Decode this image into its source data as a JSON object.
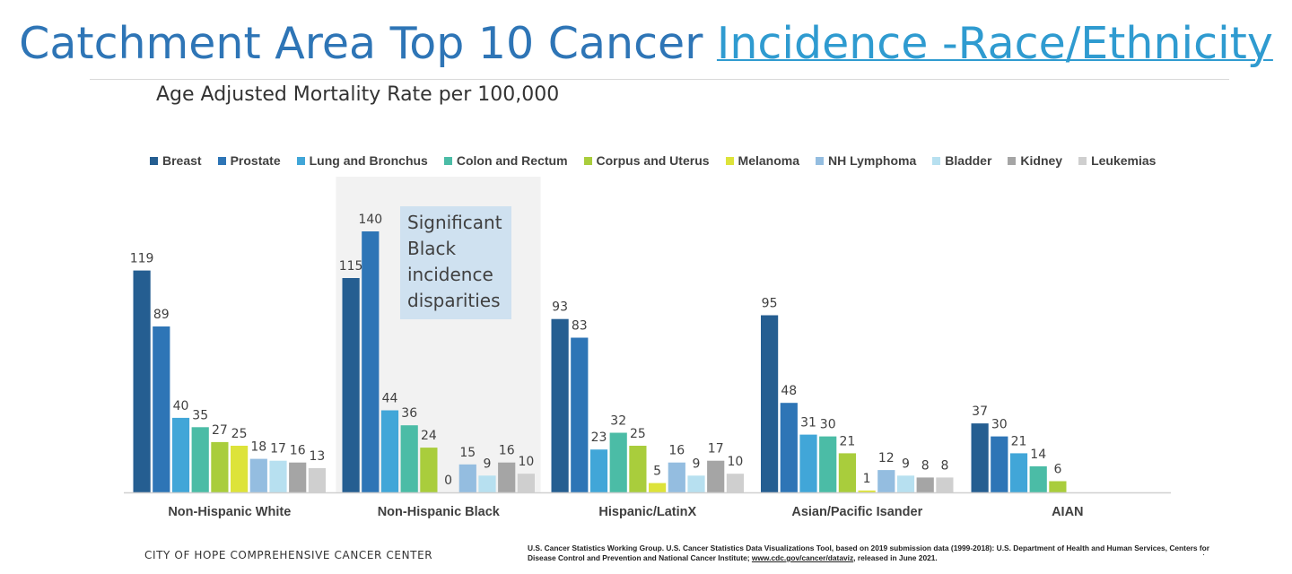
{
  "cutoff_text": "/ . . /",
  "title": {
    "main": "Catchment Area Top 10 Cancer ",
    "link": "Incidence -Race/Ethnicity"
  },
  "subtitle": "Age Adjusted Mortality Rate per 100,000",
  "annotation": "Significant Black incidence disparities",
  "footer": {
    "left": "CITY OF HOPE COMPREHENSIVE CANCER CENTER",
    "citation_pre": "U.S. Cancer Statistics Working Group. U.S. Cancer Statistics Data Visualizations Tool, based on 2019 submission data (1999-2018): U.S. Department of Health and Human Services, Centers for Disease Control and Prevention and National Cancer Institute; ",
    "citation_link": "www.cdc.gov/cancer/dataviz",
    "citation_post": ", released in June 2021.",
    "page_marker": ":"
  },
  "chart_data": {
    "type": "bar",
    "title": "Age Adjusted Mortality Rate per 100,000",
    "xlabel": "",
    "ylabel": "",
    "ylim": [
      0,
      150
    ],
    "grid": false,
    "legend_position": "top",
    "categories": [
      "Non-Hispanic White",
      "Non-Hispanic Black",
      "Hispanic/LatinX",
      "Asian/Pacific Isander",
      "AIAN"
    ],
    "series": [
      {
        "name": "Breast",
        "color": "#255e91",
        "values": [
          119,
          115,
          93,
          95,
          37
        ]
      },
      {
        "name": "Prostate",
        "color": "#2e75b6",
        "values": [
          89,
          140,
          83,
          48,
          30
        ]
      },
      {
        "name": "Lung and Bronchus",
        "color": "#41a6d8",
        "values": [
          40,
          44,
          23,
          31,
          21
        ]
      },
      {
        "name": "Colon and Rectum",
        "color": "#4bbca6",
        "values": [
          35,
          36,
          32,
          30,
          14
        ]
      },
      {
        "name": "Corpus and Uterus",
        "color": "#a9cd3c",
        "values": [
          27,
          24,
          25,
          21,
          6
        ]
      },
      {
        "name": "Melanoma",
        "color": "#dde33a",
        "values": [
          25,
          0,
          5,
          1,
          null
        ]
      },
      {
        "name": "NH Lymphoma",
        "color": "#94bde0",
        "values": [
          18,
          15,
          16,
          12,
          null
        ]
      },
      {
        "name": "Bladder",
        "color": "#b7e0f0",
        "values": [
          17,
          9,
          9,
          9,
          null
        ]
      },
      {
        "name": "Kidney",
        "color": "#a5a5a5",
        "values": [
          16,
          16,
          17,
          8,
          null
        ]
      },
      {
        "name": "Leukemias",
        "color": "#cfcfcf",
        "values": [
          13,
          10,
          10,
          8,
          null
        ]
      }
    ],
    "highlight_category": "Non-Hispanic Black"
  }
}
